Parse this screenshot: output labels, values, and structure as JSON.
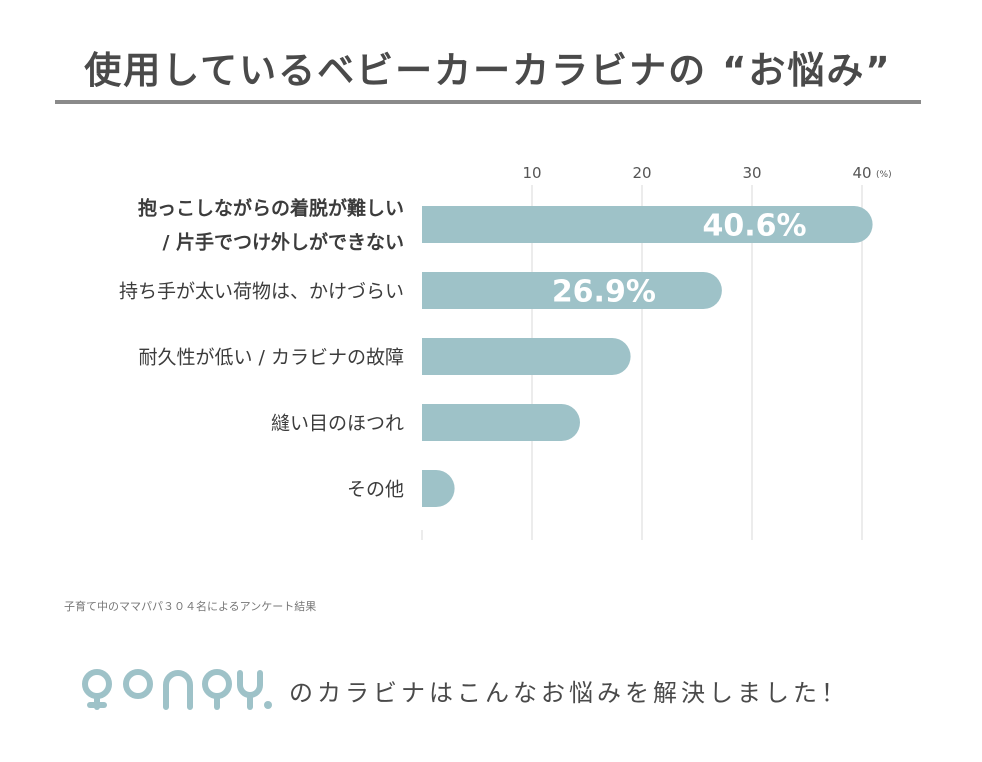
{
  "title": "使用しているベビーカーカラビナの “お悩み”",
  "chart_data": {
    "type": "bar",
    "orientation": "horizontal",
    "categories": [
      [
        "抱っこしながらの着脱が難しい",
        "/ 片手でつけ外しができない"
      ],
      [
        "持ち手が太い荷物は、かけづらい"
      ],
      [
        "耐久性が低い / カラビナの故障"
      ],
      [
        "縫い目のほつれ"
      ],
      [
        "その他"
      ]
    ],
    "values": [
      40.6,
      26.9,
      18.6,
      14.0,
      2.6
    ],
    "data_labels": [
      "40.6%",
      "26.9%",
      "",
      "",
      ""
    ],
    "xticks": [
      "10",
      "20",
      "30",
      "40"
    ],
    "unit": "(%)",
    "xlim": [
      0,
      42
    ],
    "grid": true,
    "bar_color": "#9ec2c8",
    "grid_color": "#d8d8d8"
  },
  "source": "子育て中のママパパ３０４名によるアンケート結果",
  "footer": {
    "logo_text": "ponpy.",
    "tagline": "のカラビナはこんなお悩みを解決しました！",
    "logo_color": "#9ec2c8"
  }
}
